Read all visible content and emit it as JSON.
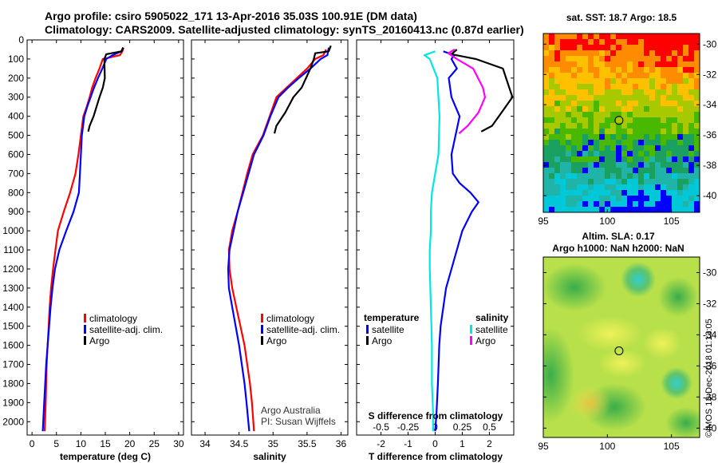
{
  "header": {
    "title_line1": "Argo profile: csiro 5905022_171 13-Apr-2016 35.03S 100.91E (DM data)",
    "title_line2": "Climatology: CARS2009. Satellite-adjusted climatology: synTS_20160413.nc (0.87d earlier)"
  },
  "colors": {
    "climatology": "#ff0000",
    "satellite": "#0000ff",
    "argo": "#000000",
    "salinity_satellite": "#00e6e6",
    "salinity_argo": "#ff00ff"
  },
  "chart_data": [
    {
      "type": "line",
      "name": "temperature",
      "xlabel": "temperature (deg C)",
      "xlim": [
        -1,
        31
      ],
      "xticks": [
        "0",
        "5",
        "10",
        "15",
        "20",
        "25",
        "30"
      ],
      "xtick_values": [
        0,
        5,
        10,
        15,
        20,
        25,
        30
      ],
      "ylim": [
        2070,
        0
      ],
      "yticks": [
        "0",
        "100",
        "200",
        "300",
        "400",
        "500",
        "600",
        "700",
        "800",
        "900",
        "1000",
        "1100",
        "1200",
        "1300",
        "1400",
        "1500",
        "1600",
        "1700",
        "1800",
        "1900",
        "2000"
      ],
      "ytick_values": [
        0,
        100,
        200,
        300,
        400,
        500,
        600,
        700,
        800,
        900,
        1000,
        1100,
        1200,
        1300,
        1400,
        1500,
        1600,
        1700,
        1800,
        1900,
        2000
      ],
      "series": [
        {
          "name": "climatology",
          "color_key": "climatology",
          "x": [
            18.7,
            18.5,
            18.0,
            14.5,
            13.8,
            13.0,
            12.3,
            11.8,
            11.2,
            10.5,
            10.0,
            9.5,
            8.9,
            7.8,
            6.5,
            5.3,
            4.8,
            4.3,
            3.9,
            3.6,
            3.4,
            3.2,
            3.0,
            2.8,
            2.6
          ],
          "y": [
            40,
            60,
            80,
            100,
            150,
            200,
            250,
            300,
            350,
            400,
            500,
            600,
            700,
            800,
            900,
            1000,
            1100,
            1200,
            1300,
            1400,
            1500,
            1600,
            1700,
            1900,
            2050
          ]
        },
        {
          "name": "satellite-adj. clim.",
          "color_key": "satellite",
          "x": [
            18.6,
            18.3,
            16.5,
            15.2,
            14.4,
            13.5,
            12.7,
            12.0,
            11.3,
            10.7,
            10.2,
            10.0,
            9.8,
            9.6,
            8.5,
            7.0,
            5.6,
            4.7,
            4.2,
            3.8,
            3.5,
            3.2,
            2.9,
            2.5,
            2.2
          ],
          "y": [
            40,
            60,
            80,
            100,
            150,
            200,
            250,
            300,
            350,
            400,
            500,
            600,
            700,
            800,
            900,
            1000,
            1100,
            1200,
            1300,
            1400,
            1500,
            1600,
            1700,
            1900,
            2050
          ]
        },
        {
          "name": "Argo",
          "color_key": "argo",
          "x": [
            18.7,
            18.3,
            15.2,
            14.8,
            14.9,
            14.5,
            13.8,
            13.2,
            12.6,
            11.8,
            11.5
          ],
          "y": [
            40,
            60,
            75,
            100,
            200,
            250,
            300,
            350,
            400,
            450,
            480
          ]
        }
      ],
      "legend": [
        "climatology",
        "satellite-adj. clim.",
        "Argo"
      ],
      "legend_position": "bottom-right"
    },
    {
      "type": "line",
      "name": "salinity",
      "xlabel": "salinity",
      "xlim": [
        33.8,
        36.1
      ],
      "xticks": [
        "34",
        "34.5",
        "35",
        "35.5",
        "36"
      ],
      "xtick_values": [
        34,
        34.5,
        35,
        35.5,
        36
      ],
      "ylim": [
        2070,
        0
      ],
      "series": [
        {
          "name": "climatology",
          "color_key": "climatology",
          "x": [
            35.78,
            35.74,
            35.62,
            35.5,
            35.35,
            35.2,
            35.05,
            34.95,
            34.85,
            34.7,
            34.62,
            34.55,
            34.48,
            34.4,
            34.35,
            34.36,
            34.4,
            34.46,
            34.52,
            34.58,
            34.62,
            34.66,
            34.69,
            34.72
          ],
          "y": [
            50,
            80,
            100,
            150,
            200,
            250,
            300,
            400,
            500,
            600,
            700,
            800,
            900,
            1000,
            1100,
            1200,
            1300,
            1400,
            1500,
            1600,
            1700,
            1800,
            1900,
            2050
          ]
        },
        {
          "name": "satellite-adj. clim.",
          "color_key": "satellite",
          "x": [
            35.82,
            35.8,
            35.7,
            35.55,
            35.38,
            35.22,
            35.08,
            34.96,
            34.86,
            34.72,
            34.64,
            34.56,
            34.48,
            34.42,
            34.36,
            34.34,
            34.35,
            34.4,
            34.45,
            34.5,
            34.54,
            34.58,
            34.61,
            34.65
          ],
          "y": [
            40,
            80,
            100,
            150,
            200,
            250,
            300,
            400,
            500,
            600,
            700,
            800,
            900,
            1000,
            1100,
            1200,
            1300,
            1400,
            1500,
            1600,
            1700,
            1800,
            1900,
            2050
          ]
        },
        {
          "name": "Argo",
          "color_key": "argo",
          "x": [
            35.85,
            35.82,
            35.62,
            35.6,
            35.55,
            35.42,
            35.3,
            35.18,
            35.05,
            35.02
          ],
          "y": [
            30,
            60,
            70,
            100,
            150,
            250,
            300,
            380,
            450,
            490
          ]
        }
      ],
      "legend": [
        "climatology",
        "satellite-adj. clim.",
        "Argo"
      ],
      "legend_position": "bottom-right",
      "annotations": [
        "Argo Australia",
        "PI: Susan Wijffels"
      ]
    },
    {
      "type": "line",
      "name": "difference",
      "xlabel": "T difference from climatology",
      "xlim": [
        -2.9,
        2.9
      ],
      "xticks": [
        "-2",
        "-1",
        "0",
        "1",
        "2"
      ],
      "xtick_values": [
        -2,
        -1,
        0,
        1,
        2
      ],
      "secondary_xlabel": "S difference from climatology",
      "secondary_xticks": [
        "-0.5",
        "-0.25",
        "0",
        "0.25",
        "0.5"
      ],
      "secondary_xtick_values": [
        -0.5,
        -0.25,
        0,
        0.25,
        0.5
      ],
      "s_scale": 4,
      "ylim": [
        2070,
        0
      ],
      "series": [
        {
          "name": "temperature satellite",
          "unit": "T",
          "color_key": "satellite",
          "x": [
            0.3,
            0.7,
            0.6,
            0.8,
            0.5,
            0.6,
            0.9,
            0.75,
            0.6,
            0.65,
            0.9,
            1.3,
            1.6,
            1.35,
            1.0,
            0.8,
            0.6,
            0.4,
            0.3,
            0.2,
            0.15,
            0.1,
            0.05,
            0.0
          ],
          "y": [
            60,
            80,
            100,
            150,
            200,
            300,
            400,
            500,
            600,
            700,
            750,
            800,
            850,
            900,
            1000,
            1100,
            1200,
            1300,
            1400,
            1500,
            1600,
            1800,
            1950,
            2050
          ]
        },
        {
          "name": "temperature Argo",
          "unit": "T",
          "color_key": "argo",
          "x": [
            0.8,
            0.6,
            1.5,
            2.5,
            2.85,
            2.6,
            2.1,
            1.7
          ],
          "y": [
            50,
            75,
            100,
            150,
            300,
            350,
            450,
            480
          ]
        },
        {
          "name": "salinity satellite",
          "unit": "S",
          "color_key": "salinity_satellite",
          "x": [
            0.0,
            -0.1,
            -0.05,
            0.02,
            0.04,
            0.03,
            0.0,
            -0.03,
            -0.04,
            -0.04,
            -0.05,
            -0.05,
            -0.04,
            -0.03,
            -0.03,
            -0.02,
            -0.02
          ],
          "y": [
            60,
            80,
            100,
            200,
            400,
            600,
            700,
            800,
            900,
            1000,
            1100,
            1200,
            1400,
            1600,
            1800,
            1950,
            2050
          ]
        },
        {
          "name": "salinity Argo",
          "unit": "S",
          "color_key": "salinity_argo",
          "x": [
            0.18,
            0.12,
            0.2,
            0.35,
            0.44,
            0.46,
            0.4,
            0.3,
            0.22
          ],
          "y": [
            50,
            70,
            100,
            150,
            250,
            300,
            380,
            450,
            490
          ]
        }
      ],
      "legend": [
        "satellite",
        "Argo",
        "satellite",
        "Argo"
      ],
      "legend_headers": [
        "temperature",
        "salinity"
      ],
      "legend_position": "bottom"
    },
    {
      "type": "heatmap",
      "name": "sst map",
      "title": "sat. SST: 18.7 Argo: 18.5",
      "x_range": [
        95,
        107.2
      ],
      "y_range": [
        -41.1,
        -29.3
      ],
      "xticks": [
        "95",
        "100",
        "105"
      ],
      "xtick_values": [
        95,
        100,
        105
      ],
      "yticks": [
        "-30",
        "-32",
        "-34",
        "-36",
        "-38",
        "-40"
      ],
      "ytick_values": [
        -30,
        -32,
        -34,
        -36,
        -38,
        -40
      ],
      "marker_lon": 100.91,
      "marker_lat": -35.03
    },
    {
      "type": "heatmap",
      "name": "sla map",
      "title_line1": "Altim. SLA: 0.17",
      "title_line2": "Argo h1000: NaN h2000: NaN",
      "x_range": [
        95,
        107.2
      ],
      "y_range": [
        -40.6,
        -29.0
      ],
      "xticks": [
        "95",
        "100",
        "105"
      ],
      "xtick_values": [
        95,
        100,
        105
      ],
      "yticks": [
        "-30",
        "-32",
        "-34",
        "-36",
        "-38",
        "-40"
      ],
      "ytick_values": [
        -30,
        -32,
        -34,
        -36,
        -38,
        -40
      ],
      "marker_lon": 100.91,
      "marker_lat": -35.03
    }
  ],
  "footer": {
    "stamp": "©IMOS 13-Dec-2018 01:13:05"
  }
}
